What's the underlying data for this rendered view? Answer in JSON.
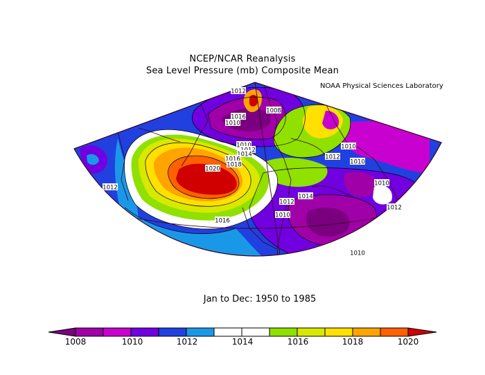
{
  "header": {
    "title_line1": "NCEP/NCAR Reanalysis",
    "title_line2": "Sea Level Pressure (mb) Composite Mean",
    "credit": "NOAA Physical Sciences Laboratory"
  },
  "footer": {
    "period": "Jan to Dec: 1950 to 1985"
  },
  "colorbar": {
    "colors": [
      "#7a0080",
      "#a000a8",
      "#c800d0",
      "#7000e0",
      "#2040e0",
      "#1a98e8",
      "#ffffff",
      "#ffffff",
      "#90e000",
      "#d8e800",
      "#ffe000",
      "#ffa400",
      "#ff6000",
      "#d00000"
    ],
    "tick_labels": [
      "1008",
      "1010",
      "1012",
      "1014",
      "1016",
      "1018",
      "1020"
    ]
  },
  "contour_labels": [
    {
      "text": "1012"
    },
    {
      "text": "1016"
    },
    {
      "text": "1010"
    },
    {
      "text": "1008"
    },
    {
      "text": "1010"
    },
    {
      "text": "1012"
    },
    {
      "text": "1014"
    },
    {
      "text": "1016"
    },
    {
      "text": "1018"
    },
    {
      "text": "1020"
    },
    {
      "text": "1012"
    },
    {
      "text": "1016"
    },
    {
      "text": "1012"
    },
    {
      "text": "1010"
    },
    {
      "text": "1010"
    },
    {
      "text": "1010"
    },
    {
      "text": "1012"
    },
    {
      "text": "1014"
    },
    {
      "text": "1012"
    },
    {
      "text": "1010"
    },
    {
      "text": "1010"
    }
  ]
}
